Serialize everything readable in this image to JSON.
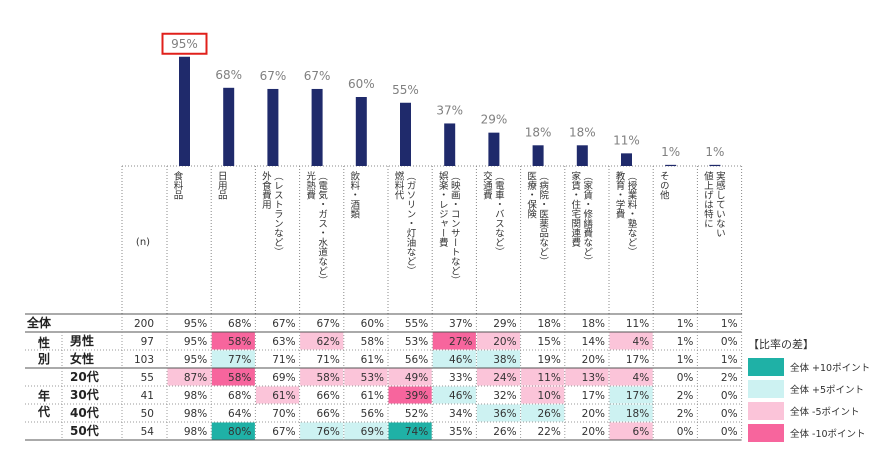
{
  "n_label": "(n)",
  "chart_data": {
    "type": "bar",
    "categories": [
      "食料品",
      "日用品",
      "外食費用\n（レストランなど）",
      "光熱費\n（電気・ガス・水道など）",
      "飲料・酒類",
      "燃料代\n（ガソリン・灯油など）",
      "娯楽・レジャー費\n（映画・コンサートなど）",
      "交通費\n（電車・バスなど）",
      "医療・保険\n（病院・医薬品など）",
      "家賃・住宅関連費\n（家賃・修繕費など）",
      "教育・学費\n（授業料・塾など）",
      "その他",
      "値上げは特に\n実感していない"
    ],
    "values": [
      95,
      68,
      67,
      67,
      60,
      55,
      37,
      29,
      18,
      18,
      11,
      1,
      1
    ],
    "value_labels": [
      "95%",
      "68%",
      "67%",
      "67%",
      "60%",
      "55%",
      "37%",
      "29%",
      "18%",
      "18%",
      "11%",
      "1%",
      "1%"
    ],
    "ylim": [
      0,
      100
    ],
    "highlight_index": 0,
    "bar_color": "#1f2a6b"
  },
  "table": {
    "rows": [
      {
        "group": "全体",
        "label": "",
        "n": "200",
        "values": [
          "95%",
          "68%",
          "67%",
          "67%",
          "60%",
          "55%",
          "37%",
          "29%",
          "18%",
          "18%",
          "11%",
          "1%",
          "1%"
        ],
        "shade": [
          "",
          "",
          "",
          "",
          "",
          "",
          "",
          "",
          "",
          "",
          "",
          "",
          ""
        ]
      },
      {
        "group": "性別",
        "label": "男性",
        "n": "97",
        "values": [
          "95%",
          "58%",
          "63%",
          "62%",
          "58%",
          "53%",
          "27%",
          "20%",
          "15%",
          "14%",
          "4%",
          "1%",
          "0%"
        ],
        "shade": [
          "",
          "d10",
          "",
          "d5",
          "",
          "",
          "d10",
          "d5",
          "",
          "",
          "d5",
          "",
          ""
        ]
      },
      {
        "group": "性別",
        "label": "女性",
        "n": "103",
        "values": [
          "95%",
          "77%",
          "71%",
          "71%",
          "61%",
          "56%",
          "46%",
          "38%",
          "19%",
          "20%",
          "17%",
          "1%",
          "1%"
        ],
        "shade": [
          "",
          "u5",
          "",
          "",
          "",
          "",
          "u5",
          "u5",
          "",
          "",
          "",
          "",
          ""
        ]
      },
      {
        "group": "年代",
        "label": "20代",
        "n": "55",
        "values": [
          "87%",
          "58%",
          "69%",
          "58%",
          "53%",
          "49%",
          "33%",
          "24%",
          "11%",
          "13%",
          "4%",
          "0%",
          "2%"
        ],
        "shade": [
          "d5",
          "d10",
          "",
          "d5",
          "d5",
          "d5",
          "",
          "d5",
          "d5",
          "d5",
          "d5",
          "",
          ""
        ]
      },
      {
        "group": "年代",
        "label": "30代",
        "n": "41",
        "values": [
          "98%",
          "68%",
          "61%",
          "66%",
          "61%",
          "39%",
          "46%",
          "32%",
          "10%",
          "17%",
          "17%",
          "2%",
          "0%"
        ],
        "shade": [
          "",
          "",
          "d5",
          "",
          "",
          "d10",
          "u5",
          "",
          "d5",
          "",
          "u5",
          "",
          ""
        ]
      },
      {
        "group": "年代",
        "label": "40代",
        "n": "50",
        "values": [
          "98%",
          "64%",
          "70%",
          "66%",
          "56%",
          "52%",
          "34%",
          "36%",
          "26%",
          "20%",
          "18%",
          "2%",
          "0%"
        ],
        "shade": [
          "",
          "",
          "",
          "",
          "",
          "",
          "",
          "u5",
          "u5",
          "",
          "u5",
          "",
          ""
        ]
      },
      {
        "group": "年代",
        "label": "50代",
        "n": "54",
        "values": [
          "98%",
          "80%",
          "67%",
          "76%",
          "69%",
          "74%",
          "35%",
          "26%",
          "22%",
          "20%",
          "6%",
          "0%",
          "0%"
        ],
        "shade": [
          "",
          "u10",
          "",
          "u5",
          "u5",
          "u10",
          "",
          "",
          "",
          "",
          "d5",
          "",
          ""
        ]
      }
    ]
  },
  "legend": {
    "title": "【比率の差】",
    "items": [
      {
        "key": "u10",
        "label": "全体 +10ポイント",
        "color": "#1fb1a6"
      },
      {
        "key": "u5",
        "label": "全体 +5ポイント",
        "color": "#cdf2f2"
      },
      {
        "key": "d5",
        "label": "全体 -5ポイント",
        "color": "#fbc4d9"
      },
      {
        "key": "d10",
        "label": "全体 -10ポイント",
        "color": "#f7659d"
      }
    ]
  }
}
